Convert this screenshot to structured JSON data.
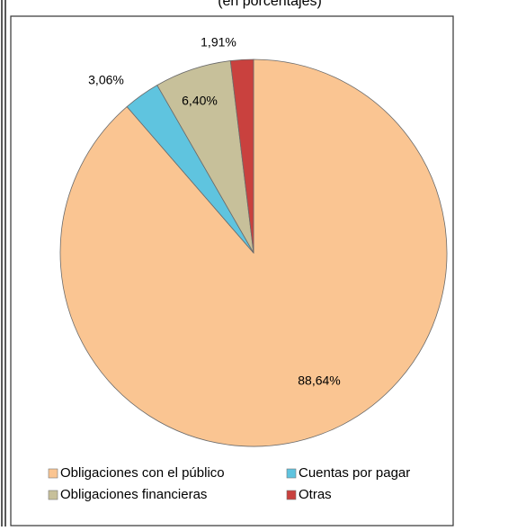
{
  "chart_data": {
    "type": "pie",
    "subtitle": "(en porcentajes)",
    "categories": [
      "Obligaciones con el público",
      "Cuentas por pagar",
      "Obligaciones financieras",
      "Otras"
    ],
    "values": [
      88.64,
      3.06,
      6.4,
      1.91
    ],
    "value_labels": [
      "88,64%",
      "3,06%",
      "6,40%",
      "1,91%"
    ],
    "colors": [
      "#fac592",
      "#5fc4df",
      "#c7c09a",
      "#c9413e"
    ],
    "legend": "bottom"
  }
}
